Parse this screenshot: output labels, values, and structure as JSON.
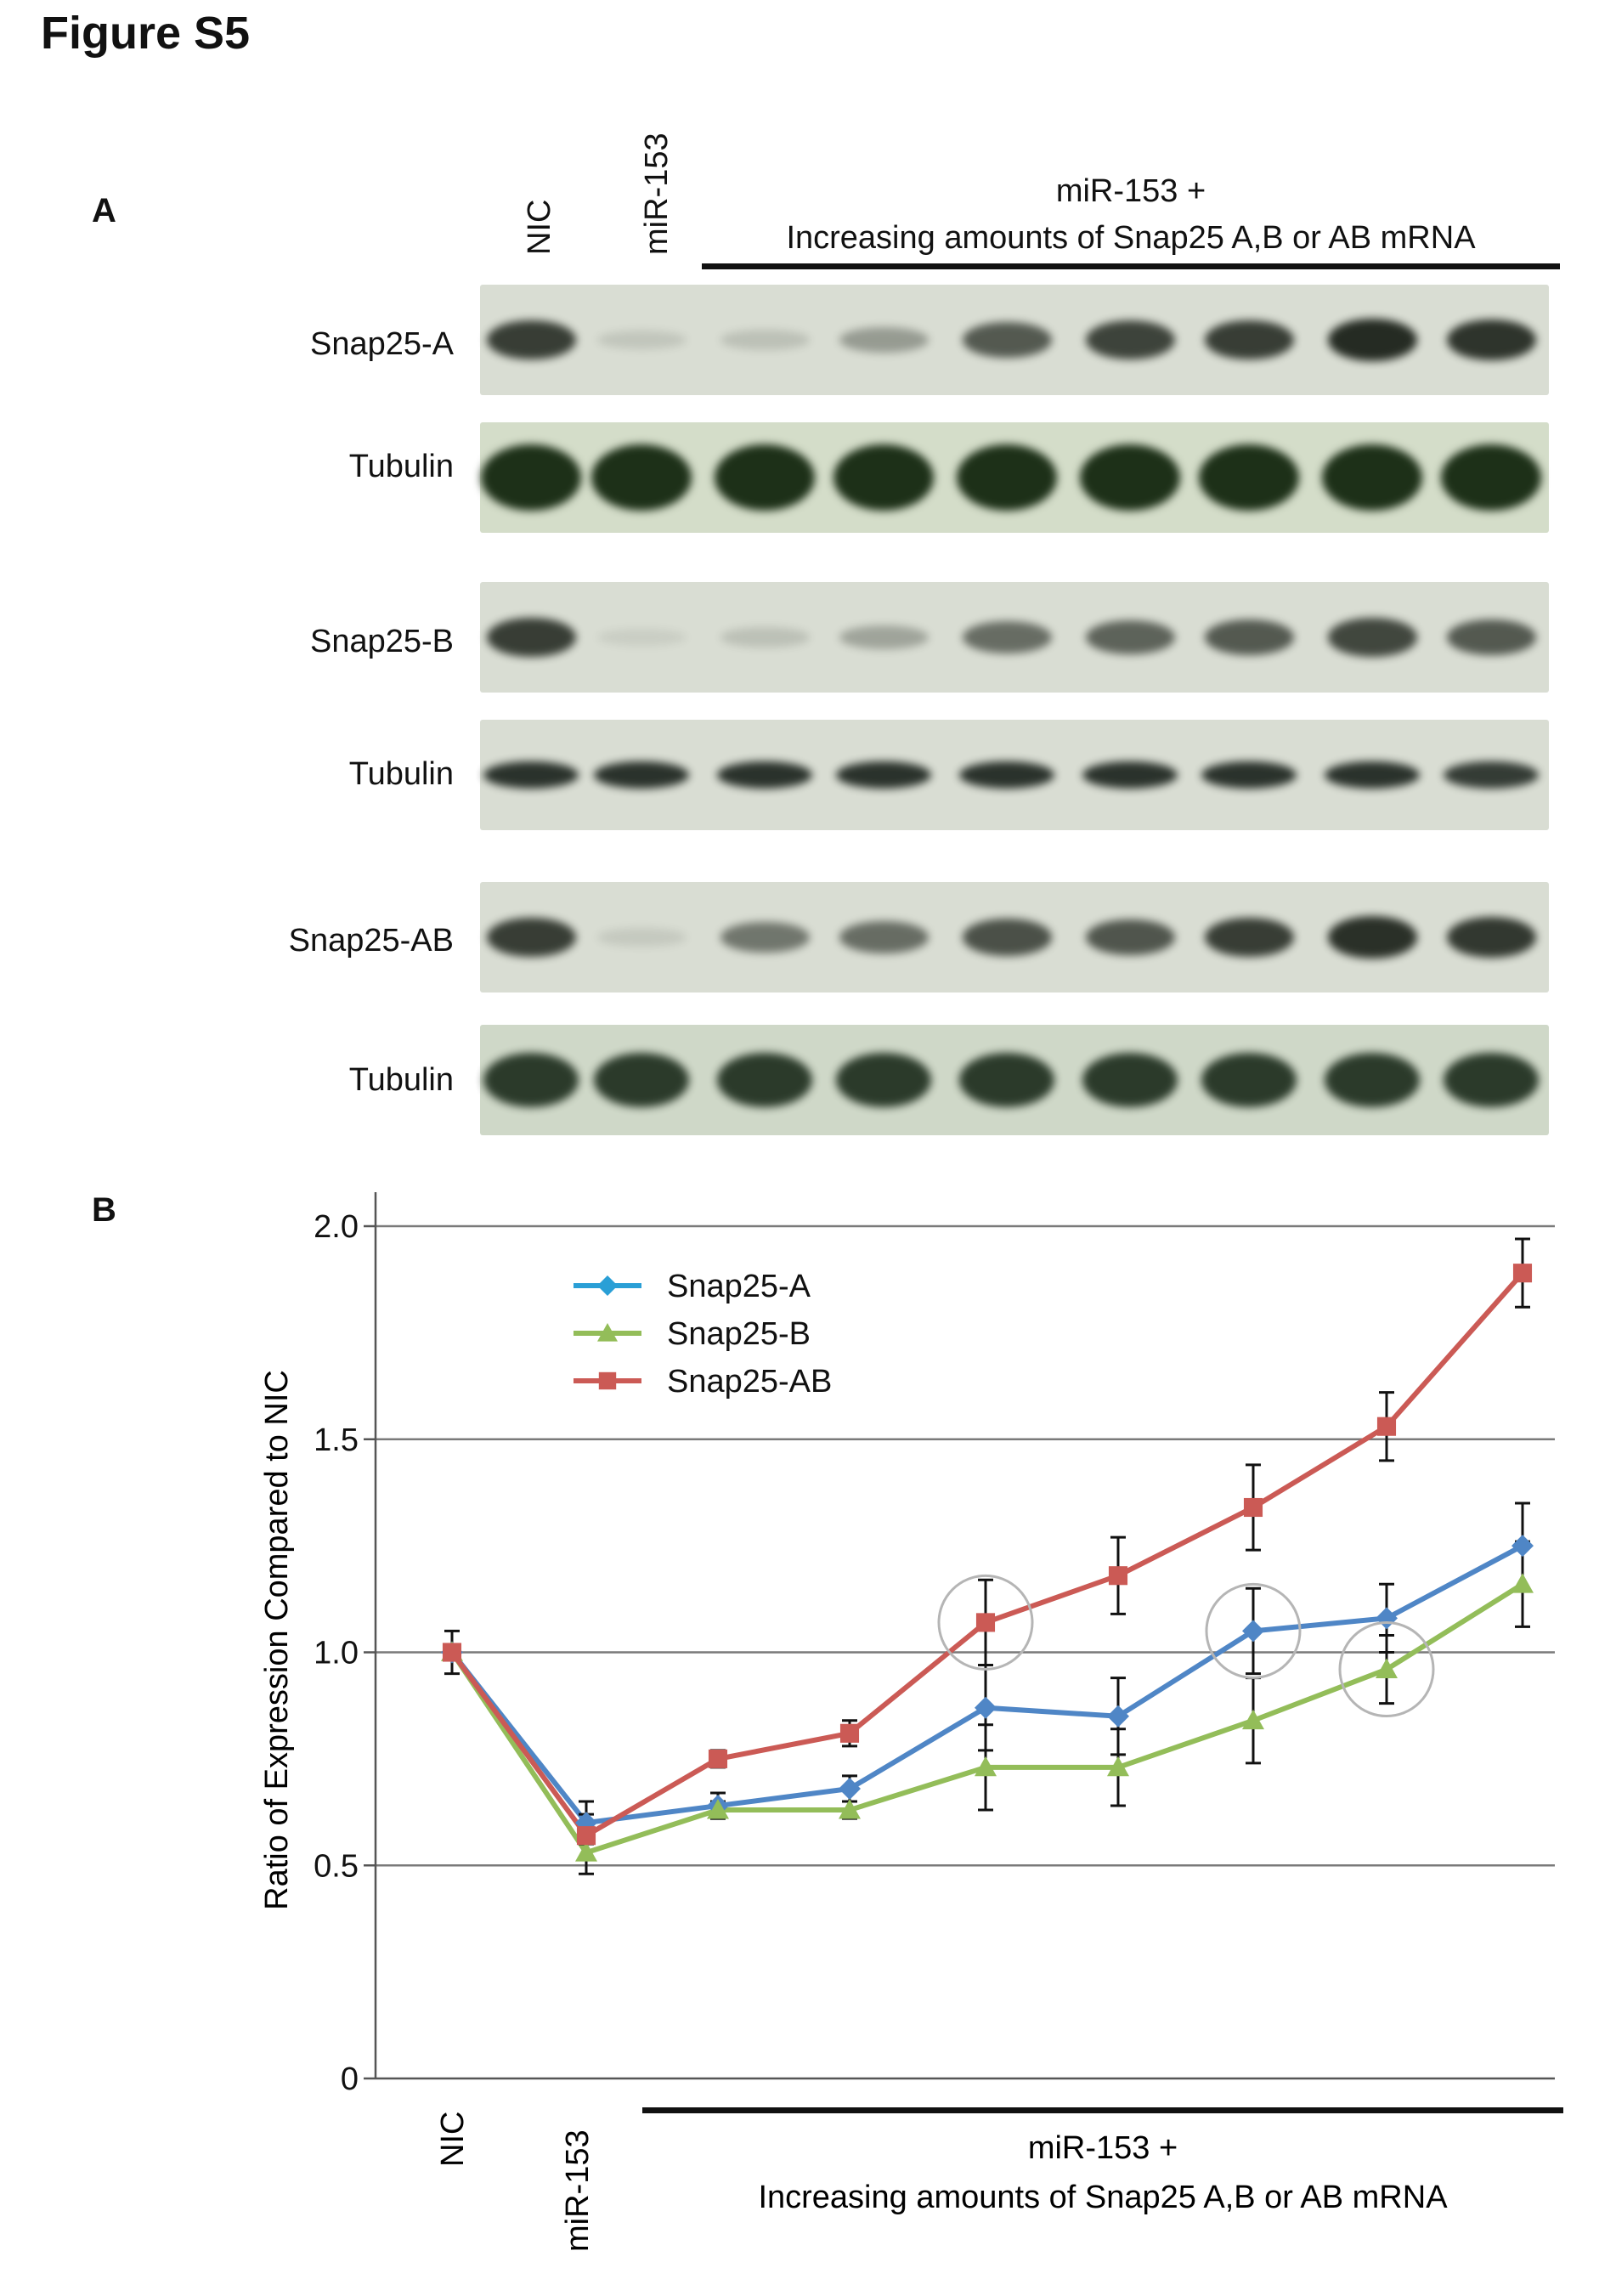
{
  "figure": {
    "title": "Figure S5",
    "panel_a_letter": "A",
    "panel_b_letter": "B"
  },
  "panel_a": {
    "lane_labels": [
      "NIC",
      "miR-153"
    ],
    "group_header_line1": "miR-153 +",
    "group_header_line2": "Increasing amounts of Snap25 A,B or AB mRNA",
    "lane_count": 9,
    "blots": [
      {
        "label": "Snap25-A",
        "kind": "target",
        "intensity": [
          0.85,
          0.12,
          0.15,
          0.35,
          0.7,
          0.82,
          0.85,
          0.95,
          0.9
        ]
      },
      {
        "label": "Tubulin",
        "kind": "tubulin-green",
        "intensity": [
          1,
          1,
          1,
          1,
          1,
          1,
          1,
          1,
          1
        ]
      },
      {
        "label": "Snap25-B",
        "kind": "target",
        "intensity": [
          0.85,
          0.08,
          0.15,
          0.3,
          0.6,
          0.65,
          0.7,
          0.8,
          0.7
        ]
      },
      {
        "label": "Tubulin",
        "kind": "tubulin-thin",
        "intensity": [
          0.9,
          0.9,
          0.9,
          0.9,
          0.9,
          0.9,
          0.9,
          0.9,
          0.85
        ]
      },
      {
        "label": "Snap25-AB",
        "kind": "target",
        "intensity": [
          0.85,
          0.1,
          0.55,
          0.6,
          0.75,
          0.72,
          0.85,
          0.92,
          0.88
        ]
      },
      {
        "label": "Tubulin",
        "kind": "tubulin-dark",
        "intensity": [
          0.9,
          0.9,
          0.9,
          0.9,
          0.9,
          0.9,
          0.9,
          0.9,
          0.9
        ]
      }
    ]
  },
  "chart_data": {
    "type": "line",
    "title": "",
    "ylabel": "Ratio of Expression Compared to NIC",
    "ylim": [
      0,
      2.0
    ],
    "yticks": [
      "0",
      "0.5",
      "1.0",
      "1.5",
      "2.0"
    ],
    "x_labels": [
      "NIC",
      "miR-153"
    ],
    "x_group_line1": "miR-153 +",
    "x_group_line2": "Increasing amounts of Snap25 A,B or AB mRNA",
    "grid": true,
    "legend_position": "top-left",
    "series": [
      {
        "name": "Snap25-A",
        "color": "#4f86c6",
        "marker": "diamond",
        "values": [
          1.0,
          0.6,
          0.64,
          0.68,
          0.87,
          0.85,
          1.05,
          1.08,
          1.25
        ],
        "errors": [
          0,
          0.05,
          0.03,
          0.03,
          0.1,
          0.09,
          0.1,
          0.08,
          0.1
        ]
      },
      {
        "name": "Snap25-B",
        "color": "#93bd59",
        "marker": "triangle",
        "values": [
          1.0,
          0.53,
          0.63,
          0.63,
          0.73,
          0.73,
          0.84,
          0.96,
          1.16
        ],
        "errors": [
          0,
          0.05,
          0.02,
          0.02,
          0.1,
          0.09,
          0.1,
          0.08,
          0.1
        ]
      },
      {
        "name": "Snap25-AB",
        "color": "#cb5a55",
        "marker": "square",
        "values": [
          1.0,
          0.57,
          0.75,
          0.81,
          1.07,
          1.18,
          1.34,
          1.53,
          1.89
        ],
        "errors": [
          0.05,
          0.05,
          0.02,
          0.03,
          0.1,
          0.09,
          0.1,
          0.08,
          0.08
        ]
      }
    ],
    "highlight_circles": [
      {
        "series": "Snap25-AB",
        "index": 4
      },
      {
        "series": "Snap25-A",
        "index": 6
      },
      {
        "series": "Snap25-B",
        "index": 7
      }
    ],
    "legend_colors": {
      "Snap25-A": "#2a9fd6"
    }
  }
}
